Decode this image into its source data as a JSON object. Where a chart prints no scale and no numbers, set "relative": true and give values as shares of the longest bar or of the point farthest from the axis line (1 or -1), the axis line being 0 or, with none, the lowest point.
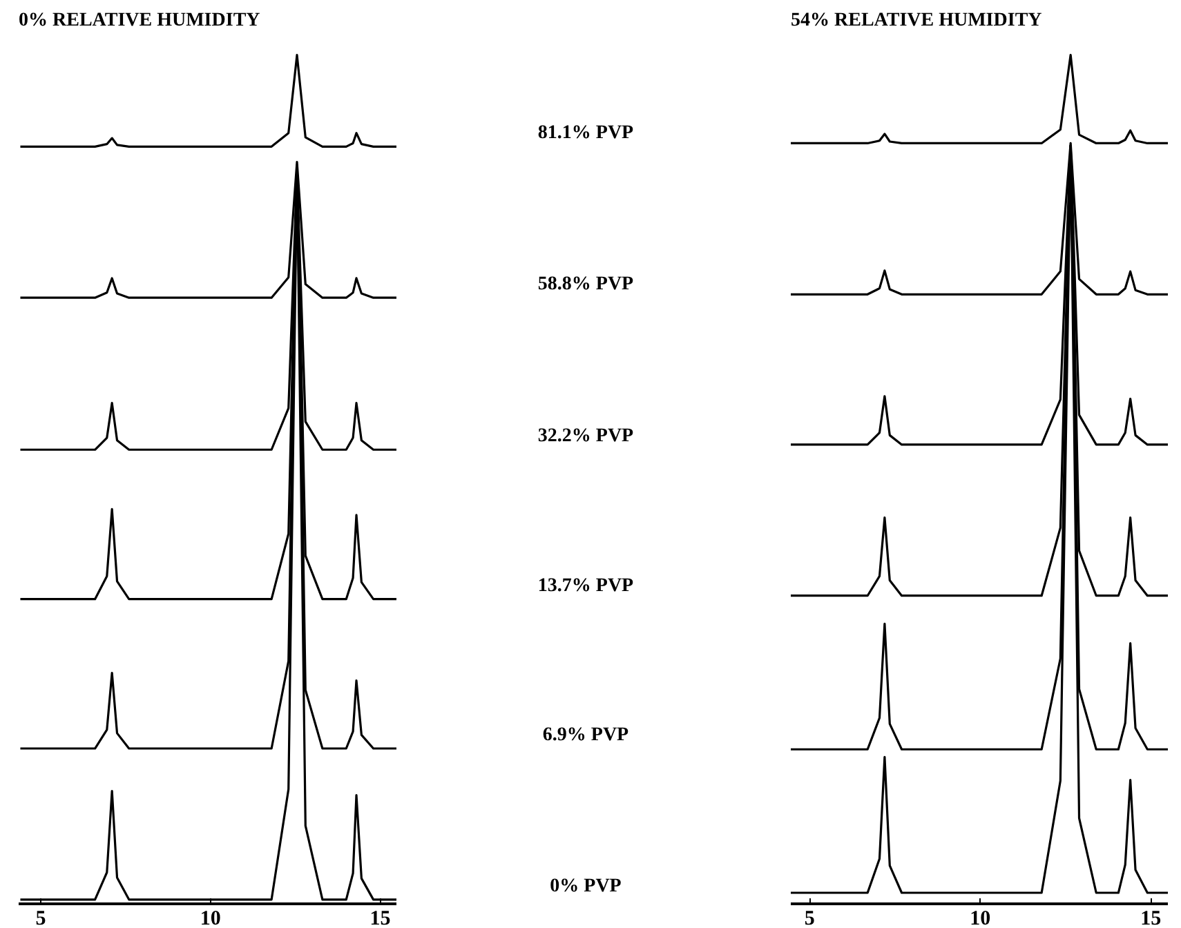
{
  "chart_data": [
    {
      "type": "line",
      "title": "0% RELATIVE HUMIDITY",
      "relative": true,
      "xlim": [
        4.35,
        15.5
      ],
      "xticks": [
        5,
        10,
        15
      ],
      "tick_labels": "x",
      "grid": false,
      "legend": false,
      "marker": "none",
      "line_style": "solid",
      "x": [
        4.4,
        6.6,
        6.95,
        7.1,
        7.25,
        7.6,
        11.8,
        12.3,
        12.55,
        12.8,
        13.3,
        14.0,
        14.2,
        14.3,
        14.45,
        14.8,
        15.5
      ],
      "series": [
        {
          "name": "81.1% PVP",
          "color": "#000000",
          "values": [
            0.892,
            0.892,
            0.895,
            0.902,
            0.894,
            0.892,
            0.892,
            0.908,
            1.0,
            0.903,
            0.892,
            0.892,
            0.896,
            0.908,
            0.895,
            0.892,
            0.892
          ]
        },
        {
          "name": "58.8% PVP",
          "color": "#000000",
          "values": [
            0.714,
            0.714,
            0.72,
            0.737,
            0.719,
            0.714,
            0.714,
            0.738,
            0.874,
            0.73,
            0.714,
            0.714,
            0.72,
            0.737,
            0.719,
            0.714,
            0.714
          ]
        },
        {
          "name": "32.2% PVP",
          "color": "#000000",
          "values": [
            0.535,
            0.535,
            0.549,
            0.59,
            0.546,
            0.535,
            0.535,
            0.584,
            0.861,
            0.568,
            0.535,
            0.535,
            0.549,
            0.59,
            0.546,
            0.535,
            0.535
          ]
        },
        {
          "name": "13.7% PVP",
          "color": "#000000",
          "values": [
            0.359,
            0.359,
            0.386,
            0.465,
            0.38,
            0.359,
            0.359,
            0.436,
            0.87,
            0.41,
            0.359,
            0.359,
            0.384,
            0.458,
            0.379,
            0.359,
            0.359
          ]
        },
        {
          "name": "6.9% PVP",
          "color": "#000000",
          "values": [
            0.183,
            0.183,
            0.205,
            0.272,
            0.201,
            0.183,
            0.183,
            0.286,
            0.87,
            0.252,
            0.183,
            0.183,
            0.203,
            0.263,
            0.199,
            0.183,
            0.183
          ]
        },
        {
          "name": "0% PVP",
          "color": "#000000",
          "values": [
            0.005,
            0.005,
            0.037,
            0.133,
            0.031,
            0.005,
            0.005,
            0.135,
            0.87,
            0.092,
            0.005,
            0.005,
            0.036,
            0.128,
            0.03,
            0.005,
            0.005
          ]
        }
      ]
    },
    {
      "type": "line",
      "title": "54% RELATIVE HUMIDITY",
      "relative": true,
      "xlim": [
        4.45,
        15.5
      ],
      "xticks": [
        5,
        10,
        15
      ],
      "tick_labels": "x",
      "grid": false,
      "legend": false,
      "marker": "none",
      "line_style": "solid",
      "x": [
        4.45,
        6.7,
        7.05,
        7.2,
        7.35,
        7.7,
        11.8,
        12.35,
        12.65,
        12.9,
        13.4,
        14.05,
        14.25,
        14.4,
        14.55,
        14.9,
        15.5
      ],
      "series": [
        {
          "color": "#000000",
          "values": [
            0.896,
            0.896,
            0.899,
            0.907,
            0.898,
            0.896,
            0.896,
            0.912,
            1.0,
            0.906,
            0.896,
            0.896,
            0.9,
            0.911,
            0.899,
            0.896,
            0.896
          ]
        },
        {
          "color": "#000000",
          "values": [
            0.718,
            0.718,
            0.725,
            0.746,
            0.724,
            0.718,
            0.718,
            0.745,
            0.896,
            0.736,
            0.718,
            0.718,
            0.725,
            0.745,
            0.723,
            0.718,
            0.718
          ]
        },
        {
          "color": "#000000",
          "values": [
            0.541,
            0.541,
            0.555,
            0.598,
            0.552,
            0.541,
            0.541,
            0.594,
            0.893,
            0.576,
            0.541,
            0.541,
            0.555,
            0.595,
            0.552,
            0.541,
            0.541
          ]
        },
        {
          "color": "#000000",
          "values": [
            0.363,
            0.363,
            0.386,
            0.455,
            0.381,
            0.363,
            0.363,
            0.443,
            0.893,
            0.416,
            0.363,
            0.363,
            0.386,
            0.455,
            0.381,
            0.363,
            0.363
          ]
        },
        {
          "color": "#000000",
          "values": [
            0.182,
            0.182,
            0.219,
            0.33,
            0.212,
            0.182,
            0.182,
            0.289,
            0.893,
            0.253,
            0.182,
            0.182,
            0.213,
            0.307,
            0.207,
            0.182,
            0.182
          ]
        },
        {
          "color": "#000000",
          "values": [
            0.013,
            0.013,
            0.053,
            0.173,
            0.045,
            0.013,
            0.013,
            0.145,
            0.893,
            0.101,
            0.013,
            0.013,
            0.046,
            0.146,
            0.04,
            0.013,
            0.013
          ]
        }
      ]
    }
  ]
}
